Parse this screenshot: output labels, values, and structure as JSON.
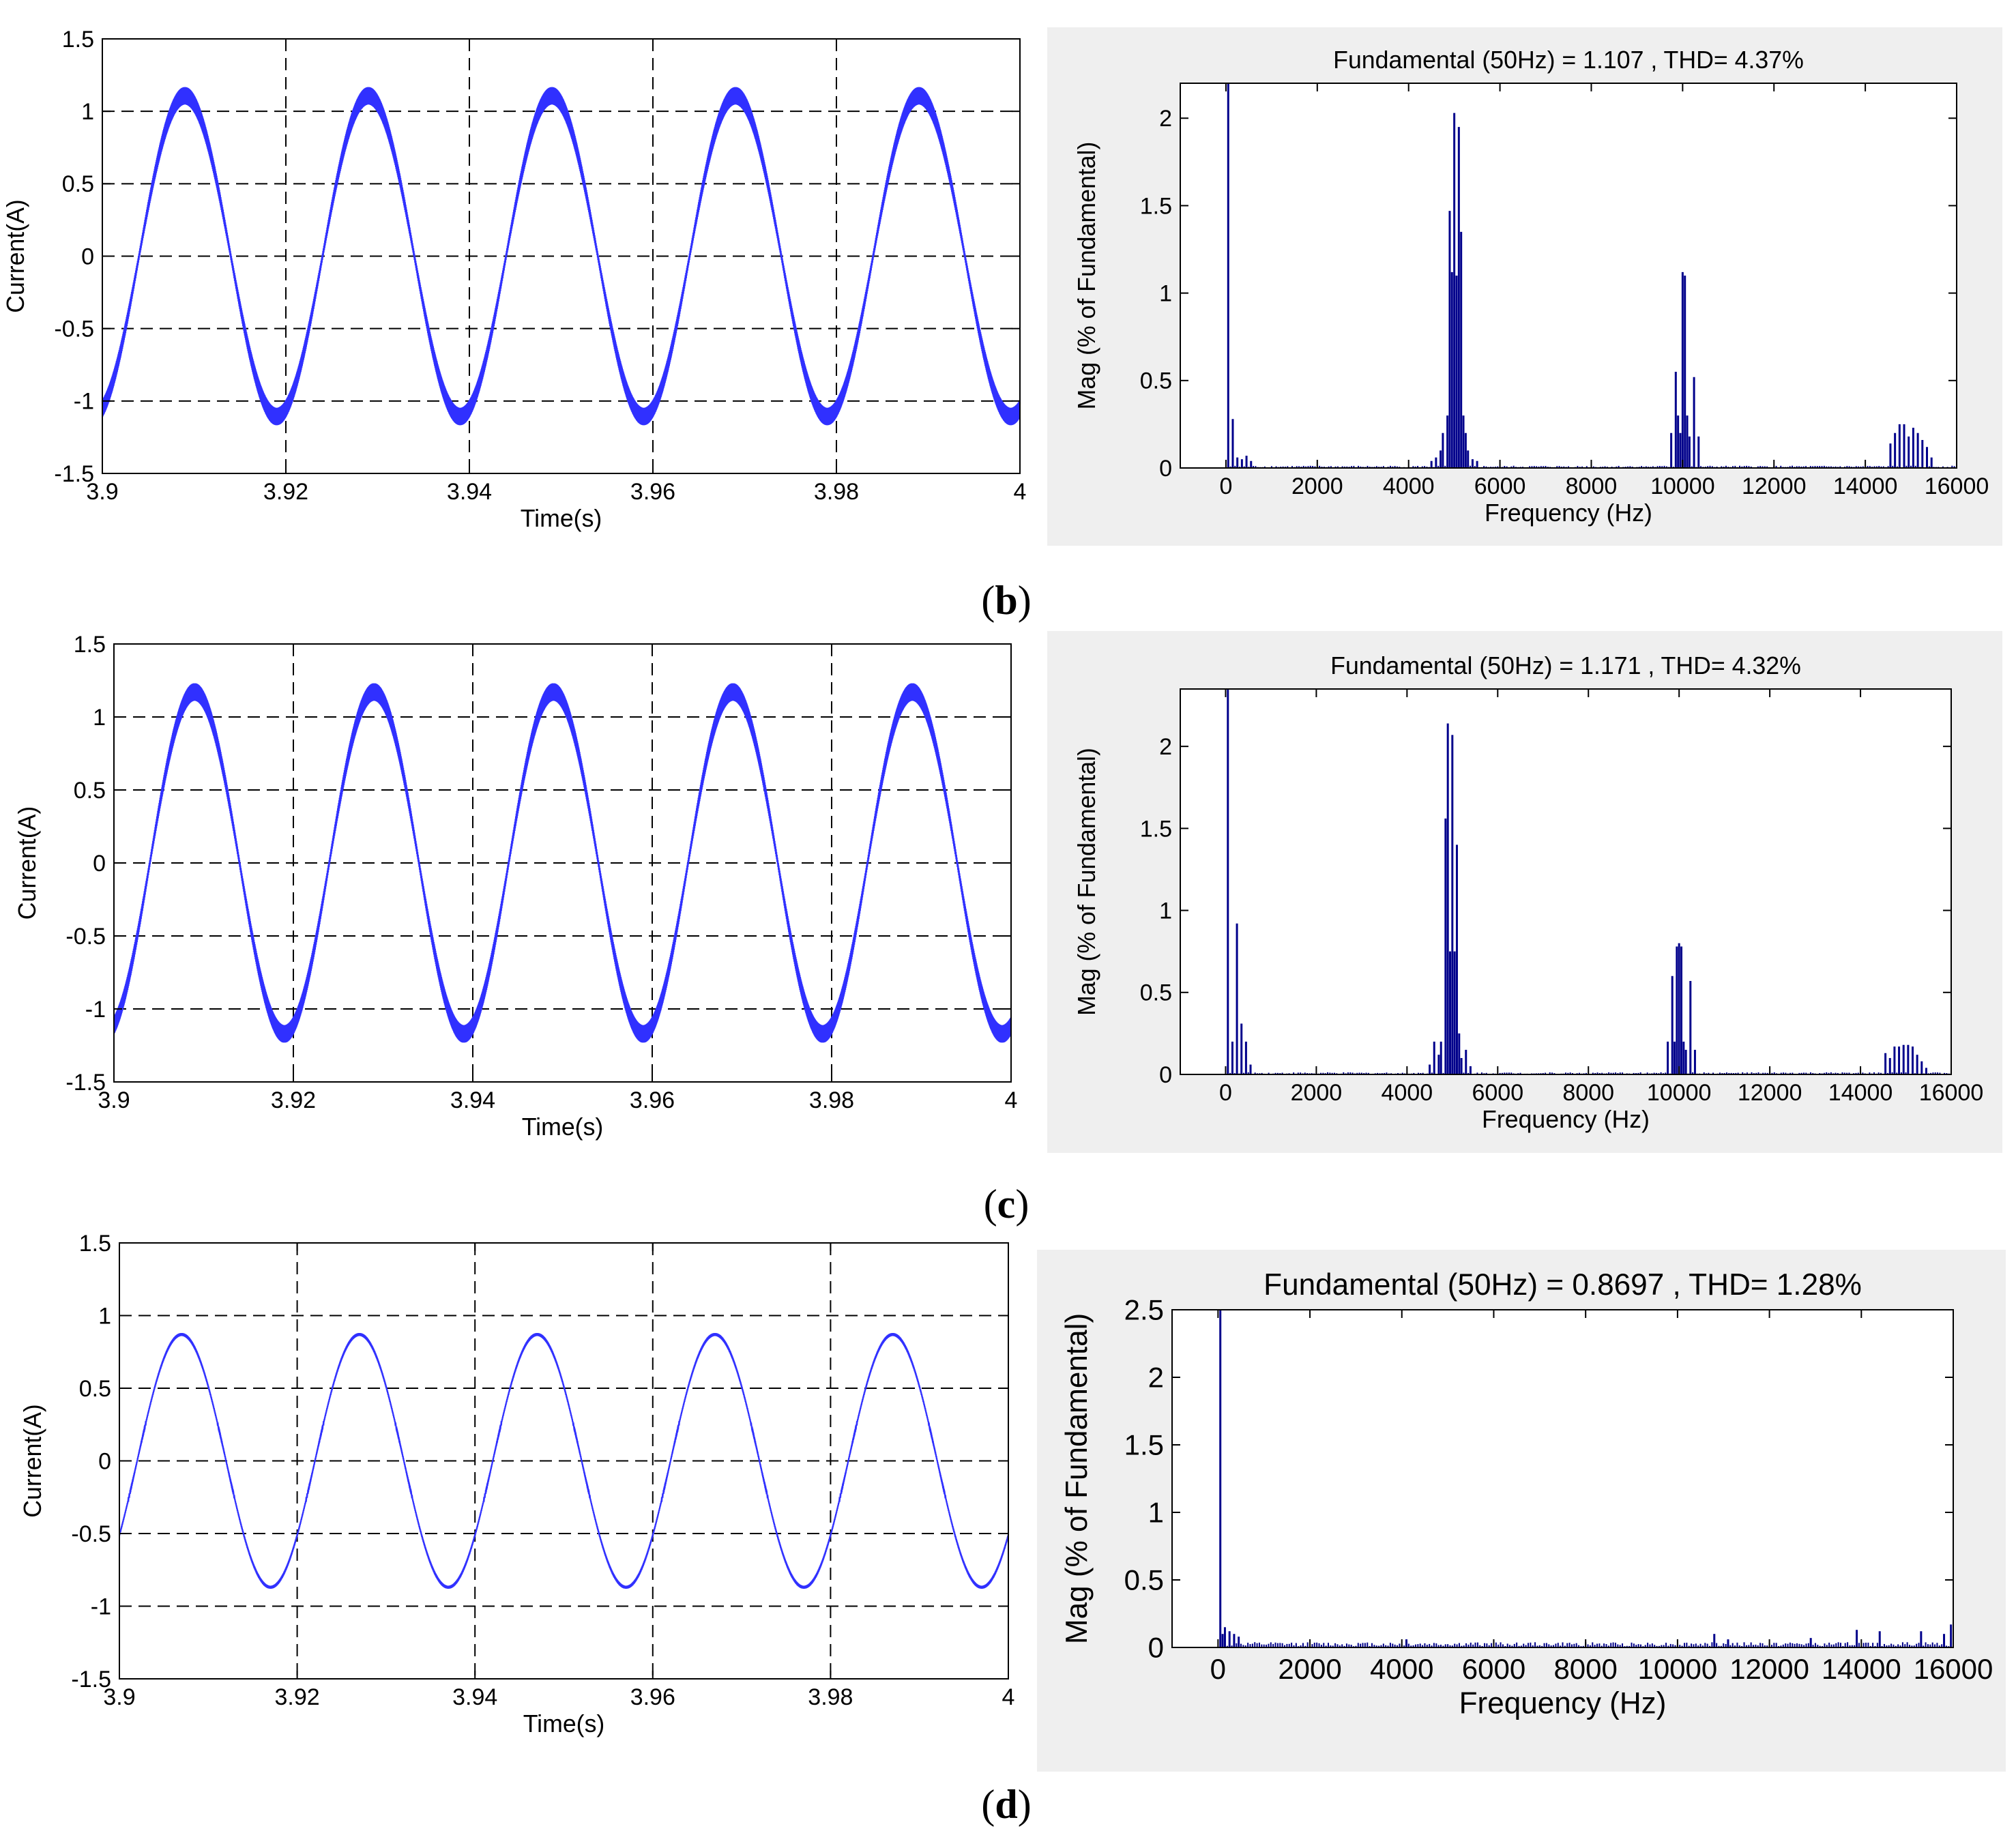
{
  "panel_labels": [
    "b",
    "c",
    "d"
  ],
  "chart_data": [
    {
      "type": "line",
      "panel": "b",
      "title": "",
      "xlabel": "Time(s)",
      "ylabel": "Current(A)",
      "xlim": [
        3.9,
        4.0
      ],
      "ylim": [
        -1.5,
        1.5
      ],
      "x_ticks": [
        3.9,
        3.92,
        3.94,
        3.96,
        3.98,
        4.0
      ],
      "x_tick_labels": [
        "3.9",
        "3.92",
        "3.94",
        "3.96",
        "3.98",
        "4"
      ],
      "y_ticks": [
        -1.5,
        -1,
        -0.5,
        0,
        0.5,
        1,
        1.5
      ],
      "y_tick_labels": [
        "-1.5",
        "-1",
        "-0.5",
        "0",
        "0.5",
        "1",
        "1.5"
      ],
      "grid": true,
      "color": "#3030ff",
      "signal": {
        "frequency_hz": 50,
        "amplitude": 1.107,
        "peak_time": 3.909,
        "ripple_amplitude": 0.06
      }
    },
    {
      "type": "bar",
      "panel": "b",
      "title": "Fundamental (50Hz) = 1.107 , THD= 4.37%",
      "xlabel": "Frequency (Hz)",
      "ylabel": "Mag (% of Fundamental)",
      "xlim": [
        -1000,
        16000
      ],
      "ylim": [
        0,
        2.2
      ],
      "x_ticks": [
        0,
        2000,
        4000,
        6000,
        8000,
        10000,
        12000,
        14000,
        16000
      ],
      "x_tick_labels": [
        "0",
        "2000",
        "4000",
        "6000",
        "8000",
        "10000",
        "12000",
        "14000",
        "16000"
      ],
      "y_ticks": [
        0,
        0.5,
        1,
        1.5,
        2
      ],
      "y_tick_labels": [
        "0",
        "0.5",
        "1",
        "1.5",
        "2"
      ],
      "grid": false,
      "color": "#00008b",
      "x": [
        50,
        150,
        250,
        350,
        450,
        550,
        4500,
        4600,
        4700,
        4750,
        4850,
        4900,
        4950,
        5000,
        5050,
        5100,
        5150,
        5200,
        5250,
        5300,
        5400,
        5500,
        9750,
        9850,
        9900,
        9950,
        10000,
        10050,
        10100,
        10150,
        10250,
        10350,
        14550,
        14650,
        14750,
        14850,
        14950,
        15050,
        15150,
        15250,
        15350,
        15450
      ],
      "values": [
        2.2,
        0.28,
        0.06,
        0.05,
        0.07,
        0.04,
        0.04,
        0.06,
        0.1,
        0.2,
        0.3,
        1.47,
        1.12,
        2.03,
        1.1,
        1.95,
        1.35,
        0.3,
        0.2,
        0.1,
        0.05,
        0.04,
        0.2,
        0.55,
        0.3,
        0.2,
        1.12,
        1.1,
        0.3,
        0.18,
        0.52,
        0.18,
        0.14,
        0.2,
        0.25,
        0.25,
        0.18,
        0.23,
        0.2,
        0.16,
        0.12,
        0.06
      ],
      "noise_floor": 0.01
    },
    {
      "type": "line",
      "panel": "c",
      "title": "",
      "xlabel": "Time(s)",
      "ylabel": "Current(A)",
      "xlim": [
        3.9,
        4.0
      ],
      "ylim": [
        -1.5,
        1.5
      ],
      "x_ticks": [
        3.9,
        3.92,
        3.94,
        3.96,
        3.98,
        4.0
      ],
      "x_tick_labels": [
        "3.9",
        "3.92",
        "3.94",
        "3.96",
        "3.98",
        "4"
      ],
      "y_ticks": [
        -1.5,
        -1,
        -0.5,
        0,
        0.5,
        1,
        1.5
      ],
      "y_tick_labels": [
        "-1.5",
        "-1",
        "-0.5",
        "0",
        "0.5",
        "1",
        "1.5"
      ],
      "grid": true,
      "color": "#3030ff",
      "signal": {
        "frequency_hz": 50,
        "amplitude": 1.171,
        "peak_time": 3.909,
        "ripple_amplitude": 0.06
      }
    },
    {
      "type": "bar",
      "panel": "c",
      "title": "Fundamental (50Hz) = 1.171 , THD= 4.32%",
      "xlabel": "Frequency (Hz)",
      "ylabel": "Mag (% of Fundamental)",
      "xlim": [
        -1000,
        16000
      ],
      "ylim": [
        0,
        2.35
      ],
      "x_ticks": [
        0,
        2000,
        4000,
        6000,
        8000,
        10000,
        12000,
        14000,
        16000
      ],
      "x_tick_labels": [
        "0",
        "2000",
        "4000",
        "6000",
        "8000",
        "10000",
        "12000",
        "14000",
        "16000"
      ],
      "y_ticks": [
        0,
        0.5,
        1,
        1.5,
        2
      ],
      "y_tick_labels": [
        "0",
        "0.5",
        "1",
        "1.5",
        "2"
      ],
      "grid": false,
      "color": "#00008b",
      "x": [
        50,
        150,
        250,
        350,
        450,
        550,
        4500,
        4600,
        4700,
        4750,
        4850,
        4900,
        4950,
        5000,
        5050,
        5100,
        5150,
        5200,
        5300,
        5400,
        9750,
        9850,
        9900,
        9950,
        10000,
        10050,
        10100,
        10150,
        10250,
        10350,
        14550,
        14650,
        14750,
        14850,
        14950,
        15050,
        15150,
        15250,
        15350,
        15450
      ],
      "values": [
        2.35,
        0.2,
        0.92,
        0.31,
        0.2,
        0.06,
        0.06,
        0.2,
        0.12,
        0.2,
        1.56,
        2.14,
        0.75,
        2.07,
        0.75,
        1.4,
        0.25,
        0.1,
        0.15,
        0.05,
        0.2,
        0.6,
        0.2,
        0.78,
        0.8,
        0.78,
        0.2,
        0.15,
        0.57,
        0.15,
        0.13,
        0.1,
        0.17,
        0.17,
        0.18,
        0.18,
        0.17,
        0.12,
        0.08,
        0.04
      ],
      "noise_floor": 0.01
    },
    {
      "type": "line",
      "panel": "d",
      "title": "",
      "xlabel": "Time(s)",
      "ylabel": "Current(A)",
      "xlim": [
        3.9,
        4.0
      ],
      "ylim": [
        -1.5,
        1.5
      ],
      "x_ticks": [
        3.9,
        3.92,
        3.94,
        3.96,
        3.98,
        4.0
      ],
      "x_tick_labels": [
        "3.9",
        "3.92",
        "3.94",
        "3.96",
        "3.98",
        "4"
      ],
      "y_ticks": [
        -1.5,
        -1,
        -0.5,
        0,
        0.5,
        1,
        1.5
      ],
      "y_tick_labels": [
        "-1.5",
        "-1",
        "-0.5",
        "0",
        "0.5",
        "1",
        "1.5"
      ],
      "grid": true,
      "color": "#3030ff",
      "signal": {
        "frequency_hz": 50,
        "amplitude": 0.8697,
        "peak_time": 3.907,
        "ripple_amplitude": 0.01
      }
    },
    {
      "type": "bar",
      "panel": "d",
      "title": "Fundamental (50Hz) = 0.8697 , THD= 1.28%",
      "xlabel": "Frequency (Hz)",
      "ylabel": "Mag (% of Fundamental)",
      "xlim": [
        -1000,
        16000
      ],
      "ylim": [
        0,
        2.5
      ],
      "x_ticks": [
        0,
        2000,
        4000,
        6000,
        8000,
        10000,
        12000,
        14000,
        16000
      ],
      "x_tick_labels": [
        "0",
        "2000",
        "4000",
        "6000",
        "8000",
        "10000",
        "12000",
        "14000",
        "16000"
      ],
      "y_ticks": [
        0,
        0.5,
        1,
        1.5,
        2,
        2.5
      ],
      "y_tick_labels": [
        "0",
        "0.5",
        "1",
        "1.5",
        "2",
        "2.5"
      ],
      "grid": false,
      "color": "#00008b",
      "x": [
        50,
        100,
        150,
        250,
        350,
        450,
        4100,
        10800,
        11100,
        12900,
        13900,
        14400,
        15300,
        15800,
        15950
      ],
      "values": [
        2.5,
        0.1,
        0.15,
        0.12,
        0.1,
        0.08,
        0.06,
        0.1,
        0.06,
        0.07,
        0.13,
        0.12,
        0.12,
        0.1,
        0.17
      ],
      "noise_floor": 0.03
    }
  ]
}
